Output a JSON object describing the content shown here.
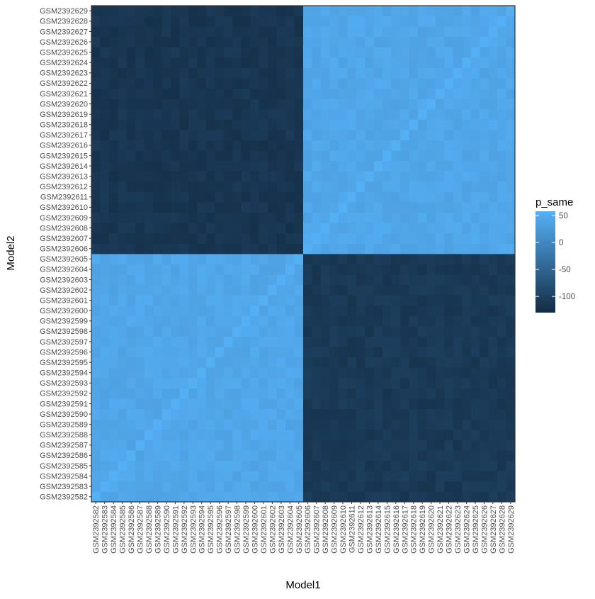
{
  "chart_data": {
    "type": "heatmap",
    "xlabel": "Model1",
    "ylabel": "Model2",
    "x_categories": [
      "GSM2392582",
      "GSM2392583",
      "GSM2392584",
      "GSM2392585",
      "GSM2392586",
      "GSM2392587",
      "GSM2392588",
      "GSM2392589",
      "GSM2392590",
      "GSM2392591",
      "GSM2392592",
      "GSM2392593",
      "GSM2392594",
      "GSM2392595",
      "GSM2392596",
      "GSM2392597",
      "GSM2392598",
      "GSM2392599",
      "GSM2392600",
      "GSM2392601",
      "GSM2392602",
      "GSM2392603",
      "GSM2392604",
      "GSM2392605",
      "GSM2392606",
      "GSM2392607",
      "GSM2392608",
      "GSM2392609",
      "GSM2392610",
      "GSM2392611",
      "GSM2392612",
      "GSM2392613",
      "GSM2392614",
      "GSM2392615",
      "GSM2392616",
      "GSM2392617",
      "GSM2392618",
      "GSM2392619",
      "GSM2392620",
      "GSM2392621",
      "GSM2392622",
      "GSM2392623",
      "GSM2392624",
      "GSM2392625",
      "GSM2392626",
      "GSM2392627",
      "GSM2392628",
      "GSM2392629"
    ],
    "y_categories": [
      "GSM2392582",
      "GSM2392583",
      "GSM2392584",
      "GSM2392585",
      "GSM2392586",
      "GSM2392587",
      "GSM2392588",
      "GSM2392589",
      "GSM2392590",
      "GSM2392591",
      "GSM2392592",
      "GSM2392593",
      "GSM2392594",
      "GSM2392595",
      "GSM2392596",
      "GSM2392597",
      "GSM2392598",
      "GSM2392599",
      "GSM2392600",
      "GSM2392601",
      "GSM2392602",
      "GSM2392603",
      "GSM2392604",
      "GSM2392605",
      "GSM2392606",
      "GSM2392607",
      "GSM2392608",
      "GSM2392609",
      "GSM2392610",
      "GSM2392611",
      "GSM2392612",
      "GSM2392613",
      "GSM2392614",
      "GSM2392615",
      "GSM2392616",
      "GSM2392617",
      "GSM2392618",
      "GSM2392619",
      "GSM2392620",
      "GSM2392621",
      "GSM2392622",
      "GSM2392623",
      "GSM2392624",
      "GSM2392625",
      "GSM2392626",
      "GSM2392627",
      "GSM2392628",
      "GSM2392629"
    ],
    "blocks": [
      {
        "x_range": [
          "GSM2392582",
          "GSM2392605"
        ],
        "y_range": [
          "GSM2392582",
          "GSM2392605"
        ],
        "approx_value": 43
      },
      {
        "x_range": [
          "GSM2392606",
          "GSM2392629"
        ],
        "y_range": [
          "GSM2392606",
          "GSM2392629"
        ],
        "approx_value": 43
      },
      {
        "x_range": [
          "GSM2392582",
          "GSM2392605"
        ],
        "y_range": [
          "GSM2392606",
          "GSM2392629"
        ],
        "approx_value": -115
      },
      {
        "x_range": [
          "GSM2392606",
          "GSM2392629"
        ],
        "y_range": [
          "GSM2392582",
          "GSM2392605"
        ],
        "approx_value": -110
      }
    ],
    "diagonal_value": 55,
    "legend": {
      "title": "p_same",
      "ticks": [
        50,
        0,
        -50,
        -100
      ],
      "range": [
        -130,
        58
      ],
      "low_color": "#132B43",
      "high_color": "#56B1F7"
    },
    "legend_position": "right"
  }
}
